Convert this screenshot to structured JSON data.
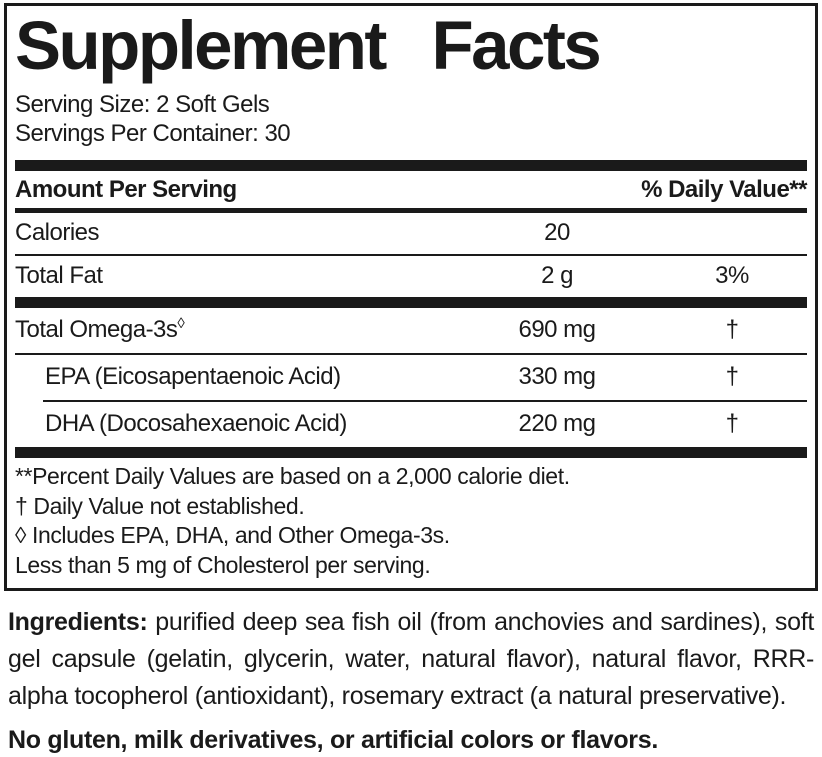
{
  "title": "Supplement Facts",
  "serving": {
    "size": "Serving Size: 2 Soft Gels",
    "per_container": "Servings Per Container: 30"
  },
  "table": {
    "header": {
      "amount_label": "Amount Per Serving",
      "dv_label": "% Daily Value**"
    },
    "rows": [
      {
        "name": "Calories",
        "amount": "20",
        "dv": ""
      },
      {
        "name": "Total Fat",
        "amount": "2 g",
        "dv": "3%"
      },
      {
        "name": "Total Omega-3s",
        "symbol": "◊",
        "amount": "690 mg",
        "dv": "†"
      },
      {
        "name": "EPA (Eicosapentaenoic Acid)",
        "amount": "330 mg",
        "dv": "†"
      },
      {
        "name": "DHA (Docosahexaenoic Acid)",
        "amount": "220 mg",
        "dv": "†"
      }
    ]
  },
  "footnotes": [
    "**Percent Daily Values are based on a 2,000 calorie diet.",
    "† Daily Value not established.",
    "◊ Includes EPA, DHA, and Other Omega-3s.",
    "Less than 5 mg of Cholesterol per serving."
  ],
  "ingredients": {
    "label": "Ingredients:",
    "text": " purified deep sea fish oil (from anchovies and sardines), soft gel capsule (gelatin, glycerin, water, natural flavor), natural flavor, RRR-alpha tocopherol (antioxidant), rosemary extract (a natural preservative)."
  },
  "allergen_statement": "No gluten, milk derivatives, or artificial colors or flavors.",
  "colors": {
    "ink": "#1a1a1a",
    "paper": "#ffffff"
  }
}
